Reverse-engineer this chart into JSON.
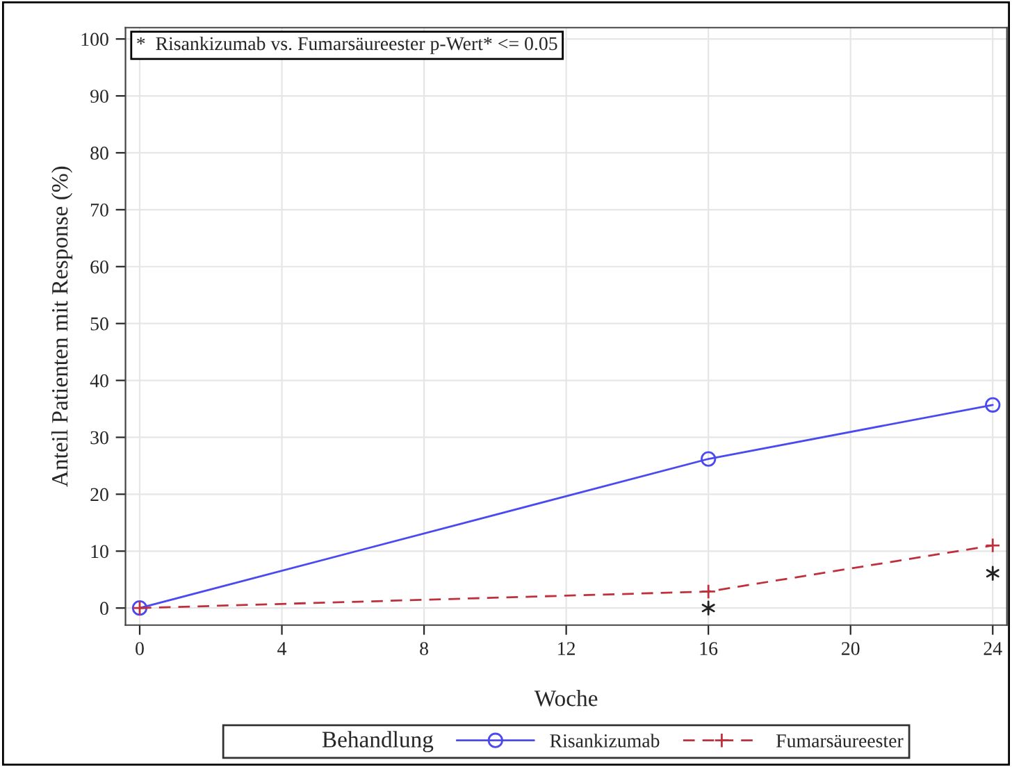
{
  "chart_data": {
    "type": "line",
    "xlabel": "Woche",
    "ylabel": "Anteil Patienten mit Response (%)",
    "legend_title": "Behandlung",
    "x": [
      0,
      16,
      24
    ],
    "series": [
      {
        "name": "Risankizumab",
        "color": "#4a4af0",
        "values": [
          0,
          26.2,
          35.7
        ],
        "marker": "circle",
        "line_style": "solid"
      },
      {
        "name": "Fumarsäureester",
        "color": "#c0303c",
        "values": [
          0,
          2.9,
          11.0
        ],
        "marker": "cross",
        "line_style": "dashed"
      },
      {
        "type": "scatter",
        "color": "#222222",
        "x": [
          16,
          24
        ],
        "values": [
          0,
          6.1
        ],
        "marker": "cross"
      }
    ],
    "xlim": [
      -0.4,
      24.4
    ],
    "ylim": [
      -3,
      102
    ],
    "xticks": [
      0,
      4,
      8,
      12,
      16,
      20,
      24
    ],
    "yticks": [
      0,
      10,
      20,
      30,
      40,
      50,
      60,
      70,
      80,
      90,
      100
    ],
    "grid": true,
    "legend": "bottom",
    "annotations": [
      "*  Risankizumab vs. Fumarsäureester p-Wert* <= 0.05"
    ]
  }
}
